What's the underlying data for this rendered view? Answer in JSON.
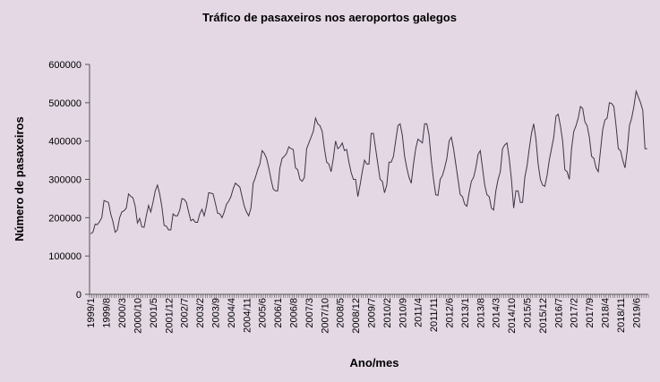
{
  "chart_data": {
    "type": "line",
    "title": "Tráfico de pasaxeiros nos aeroportos galegos",
    "xlabel": "Ano/mes",
    "ylabel": "Número de pasaxeiros",
    "ylim": [
      0,
      600000
    ],
    "yticks": [
      "0",
      "100000",
      "200000",
      "300000",
      "400000",
      "500000",
      "600000"
    ],
    "x_tick_labels": [
      "1999/1",
      "1999/8",
      "2000/3",
      "2000/10",
      "2001/5",
      "2001/12",
      "2002/7",
      "2003/2",
      "2003/9",
      "2004/4",
      "2004/11",
      "2005/6",
      "2006/1",
      "2006/8",
      "2007/3",
      "2007/10",
      "2008/5",
      "2008/12",
      "2009/7",
      "2010/2",
      "2010/9",
      "2011/4",
      "2011/11",
      "2012/6",
      "2013/1",
      "2013/8",
      "2014/3",
      "2014/10",
      "2015/5",
      "2015/12",
      "2016/7",
      "2017/2",
      "2017/9",
      "2018/4",
      "2018/11",
      "2019/6"
    ],
    "x_start": "1999/1",
    "legend": "none",
    "grid": false,
    "line_color": "#3c3648",
    "series": [
      {
        "values": [
          158000,
          162000,
          183000,
          182000,
          190000,
          200000,
          245000,
          242000,
          240000,
          210000,
          190000,
          162000,
          168000,
          200000,
          215000,
          218000,
          225000,
          262000,
          256000,
          252000,
          230000,
          186000,
          198000,
          176000,
          175000,
          205000,
          232000,
          215000,
          240000,
          270000,
          285000,
          262000,
          228000,
          180000,
          178000,
          168000,
          168000,
          210000,
          205000,
          205000,
          220000,
          250000,
          248000,
          240000,
          215000,
          192000,
          196000,
          188000,
          188000,
          210000,
          222000,
          205000,
          230000,
          265000,
          264000,
          262000,
          238000,
          212000,
          210000,
          200000,
          215000,
          235000,
          243000,
          255000,
          275000,
          290000,
          285000,
          280000,
          255000,
          230000,
          215000,
          205000,
          225000,
          290000,
          305000,
          325000,
          340000,
          375000,
          368000,
          355000,
          330000,
          300000,
          275000,
          270000,
          270000,
          330000,
          355000,
          360000,
          368000,
          385000,
          380000,
          378000,
          330000,
          325000,
          300000,
          295000,
          305000,
          380000,
          395000,
          410000,
          425000,
          460000,
          445000,
          440000,
          425000,
          380000,
          345000,
          340000,
          320000,
          355000,
          400000,
          380000,
          385000,
          395000,
          375000,
          378000,
          345000,
          318000,
          300000,
          300000,
          255000,
          285000,
          320000,
          350000,
          340000,
          340000,
          420000,
          420000,
          380000,
          340000,
          300000,
          295000,
          265000,
          285000,
          345000,
          345000,
          360000,
          400000,
          440000,
          445000,
          415000,
          360000,
          330000,
          305000,
          290000,
          340000,
          380000,
          405000,
          400000,
          395000,
          445000,
          445000,
          415000,
          350000,
          300000,
          260000,
          258000,
          300000,
          310000,
          330000,
          355000,
          400000,
          410000,
          380000,
          340000,
          300000,
          260000,
          255000,
          235000,
          230000,
          265000,
          295000,
          305000,
          330000,
          365000,
          375000,
          330000,
          285000,
          260000,
          255000,
          225000,
          220000,
          270000,
          300000,
          320000,
          380000,
          390000,
          395000,
          355000,
          300000,
          225000,
          270000,
          270000,
          240000,
          240000,
          305000,
          335000,
          380000,
          420000,
          445000,
          405000,
          340000,
          300000,
          285000,
          282000,
          310000,
          350000,
          380000,
          410000,
          465000,
          470000,
          440000,
          400000,
          325000,
          320000,
          300000,
          380000,
          425000,
          440000,
          460000,
          490000,
          485000,
          450000,
          440000,
          410000,
          360000,
          355000,
          330000,
          320000,
          375000,
          430000,
          455000,
          460000,
          500000,
          498000,
          490000,
          440000,
          380000,
          375000,
          350000,
          330000,
          375000,
          440000,
          460000,
          490000,
          530000,
          515000,
          500000,
          480000,
          380000,
          380000
        ]
      }
    ]
  }
}
